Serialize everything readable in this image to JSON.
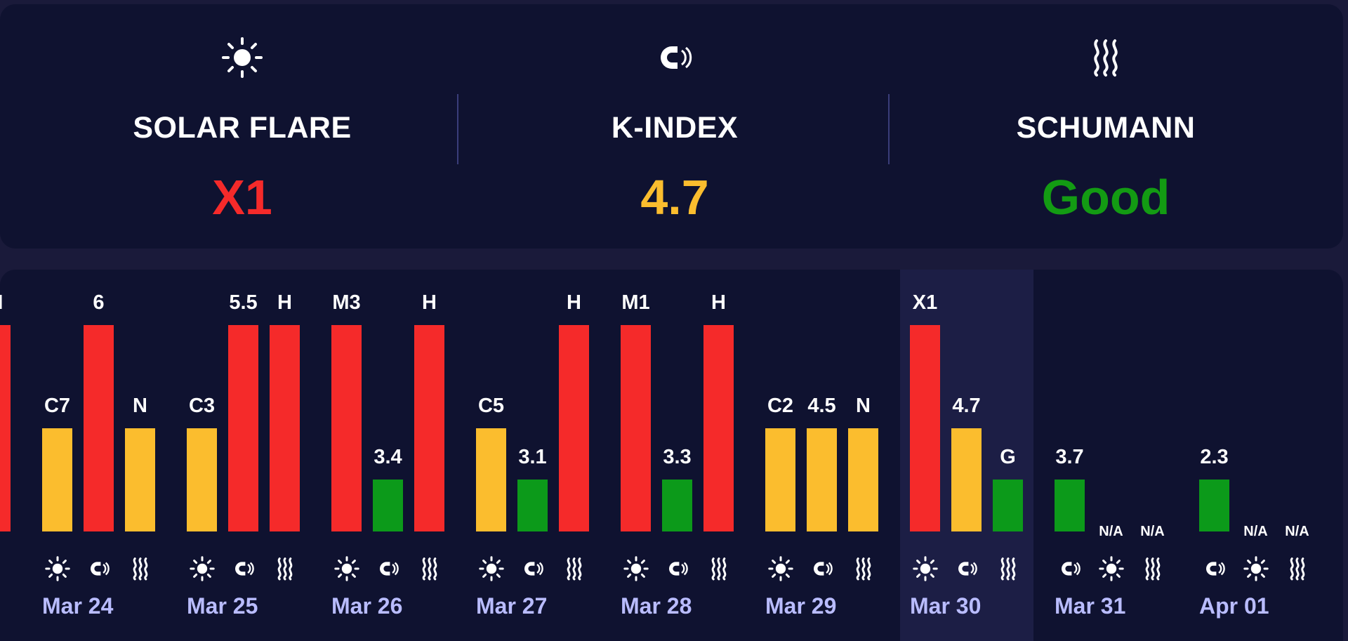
{
  "summary": {
    "solar_flare": {
      "label": "SOLAR FLARE",
      "value": "X1",
      "color": "#f52a2a",
      "icon": "sun-icon"
    },
    "k_index": {
      "label": "K-INDEX",
      "value": "4.7",
      "color": "#fbbd2e",
      "icon": "magnet-icon"
    },
    "schumann": {
      "label": "SCHUMANN",
      "value": "Good",
      "color": "#139b13",
      "icon": "waves-icon"
    }
  },
  "colors": {
    "red": "#f52a2a",
    "yellow": "#fbbd2e",
    "green": "#0c9a1a"
  },
  "days": [
    {
      "date": "Mar 24",
      "bars": [
        {
          "label": "C7",
          "level": "yellow",
          "icon": "sun-icon"
        },
        {
          "label": "6",
          "level": "red",
          "icon": "magnet-icon"
        },
        {
          "label": "N",
          "level": "yellow",
          "icon": "waves-icon"
        }
      ]
    },
    {
      "date": "Mar 25",
      "bars": [
        {
          "label": "C3",
          "level": "yellow",
          "icon": "sun-icon"
        },
        {
          "label": "5.5",
          "level": "red",
          "icon": "magnet-icon"
        },
        {
          "label": "H",
          "level": "red",
          "icon": "waves-icon"
        }
      ]
    },
    {
      "date": "Mar 26",
      "bars": [
        {
          "label": "M3",
          "level": "red",
          "icon": "sun-icon"
        },
        {
          "label": "3.4",
          "level": "green",
          "icon": "magnet-icon"
        },
        {
          "label": "H",
          "level": "red",
          "icon": "waves-icon"
        }
      ]
    },
    {
      "date": "Mar 27",
      "bars": [
        {
          "label": "C5",
          "level": "yellow",
          "icon": "sun-icon"
        },
        {
          "label": "3.1",
          "level": "green",
          "icon": "magnet-icon"
        },
        {
          "label": "H",
          "level": "red",
          "icon": "waves-icon"
        }
      ]
    },
    {
      "date": "Mar 28",
      "bars": [
        {
          "label": "M1",
          "level": "red",
          "icon": "sun-icon"
        },
        {
          "label": "3.3",
          "level": "green",
          "icon": "magnet-icon"
        },
        {
          "label": "H",
          "level": "red",
          "icon": "waves-icon"
        }
      ]
    },
    {
      "date": "Mar 29",
      "bars": [
        {
          "label": "C2",
          "level": "yellow",
          "icon": "sun-icon"
        },
        {
          "label": "4.5",
          "level": "yellow",
          "icon": "magnet-icon"
        },
        {
          "label": "N",
          "level": "yellow",
          "icon": "waves-icon"
        }
      ]
    },
    {
      "date": "Mar 30",
      "bars": [
        {
          "label": "X1",
          "level": "red",
          "icon": "sun-icon"
        },
        {
          "label": "4.7",
          "level": "yellow",
          "icon": "magnet-icon"
        },
        {
          "label": "G",
          "level": "green",
          "icon": "waves-icon"
        }
      ]
    },
    {
      "date": "Mar 31",
      "bars": [
        {
          "label": "3.7",
          "level": "green",
          "icon": "magnet-icon"
        },
        {
          "label": "N/A",
          "level": "none",
          "icon": "sun-icon"
        },
        {
          "label": "N/A",
          "level": "none",
          "icon": "waves-icon"
        }
      ]
    },
    {
      "date": "Apr 01",
      "bars": [
        {
          "label": "2.3",
          "level": "green",
          "icon": "magnet-icon"
        },
        {
          "label": "N/A",
          "level": "none",
          "icon": "sun-icon"
        },
        {
          "label": "N/A",
          "level": "none",
          "icon": "waves-icon"
        }
      ]
    }
  ],
  "partial_left": {
    "label": "H",
    "level": "red",
    "icon": "waves-icon"
  }
}
